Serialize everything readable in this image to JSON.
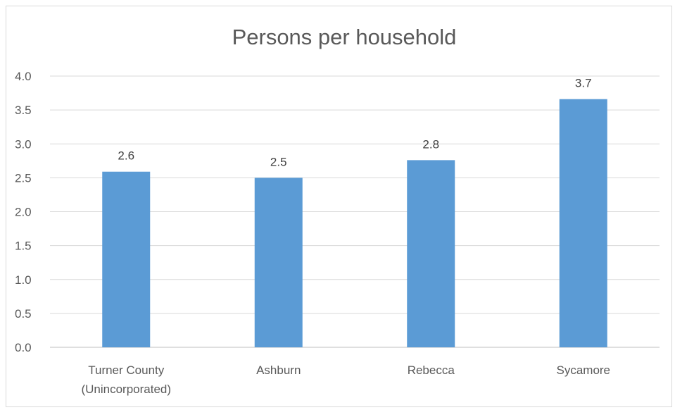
{
  "chart_data": {
    "type": "bar",
    "title": "Persons per household",
    "xlabel": "",
    "ylabel": "",
    "categories": [
      [
        "Turner County",
        "(Unincorporated)"
      ],
      [
        "Ashburn"
      ],
      [
        "Rebecca"
      ],
      [
        "Sycamore"
      ]
    ],
    "values": [
      2.59,
      2.5,
      2.76,
      3.66
    ],
    "data_labels": [
      "2.6",
      "2.5",
      "2.8",
      "3.7"
    ],
    "ylim": [
      0,
      4
    ],
    "yticks": [
      "0.0",
      "0.5",
      "1.0",
      "1.5",
      "2.0",
      "2.5",
      "3.0",
      "3.5",
      "4.0"
    ],
    "ytick_values": [
      0,
      0.5,
      1,
      1.5,
      2,
      2.5,
      3,
      3.5,
      4
    ],
    "grid": true,
    "legend": "none",
    "colors": {
      "bar": "#5b9bd5",
      "gridline": "#d9d9d9",
      "text": "#595959"
    }
  }
}
